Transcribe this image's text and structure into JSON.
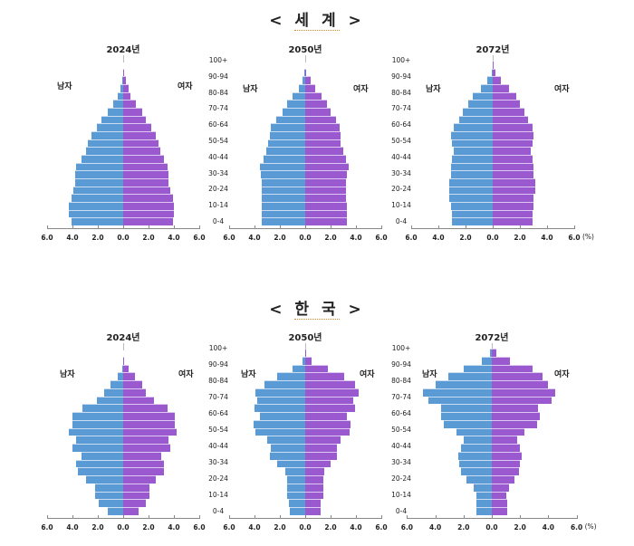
{
  "sections": [
    {
      "title": "< 세 계 >",
      "title_parts": [
        "<",
        "세 계",
        ">"
      ]
    },
    {
      "title": "< 한 국 >",
      "title_parts": [
        "<",
        "한 국",
        ">"
      ]
    }
  ],
  "labels": {
    "male": "남자",
    "female": "여자",
    "unit": "(%)"
  },
  "age_groups": [
    "0-4",
    "5-9",
    "10-14",
    "15-19",
    "20-24",
    "25-29",
    "30-34",
    "35-39",
    "40-44",
    "45-49",
    "50-54",
    "55-59",
    "60-64",
    "65-69",
    "70-74",
    "75-79",
    "80-84",
    "85-89",
    "90-94",
    "95-99",
    "100+"
  ],
  "age_tick_labels": [
    "100+",
    "90-94",
    "80-84",
    "70-74",
    "60-64",
    "50-54",
    "40-44",
    "30-34",
    "20-24",
    "10-14",
    "0-4"
  ],
  "x_ticks": [
    "6.0",
    "4.0",
    "2.0",
    "0.0",
    "2.0",
    "4.0",
    "6.0"
  ],
  "colors": {
    "male": "#5b9bd5",
    "female": "#9b59d0"
  },
  "chart_data": [
    {
      "type": "bar",
      "region": "세계",
      "title": "2024년",
      "orientation": "population-pyramid",
      "categories": [
        "0-4",
        "5-9",
        "10-14",
        "15-19",
        "20-24",
        "25-29",
        "30-34",
        "35-39",
        "40-44",
        "45-49",
        "50-54",
        "55-59",
        "60-64",
        "65-69",
        "70-74",
        "75-79",
        "80-84",
        "85-89",
        "90-94",
        "95-99",
        "100+"
      ],
      "series": [
        {
          "name": "남자",
          "values": [
            4.1,
            4.3,
            4.3,
            4.1,
            3.9,
            3.8,
            3.8,
            3.7,
            3.3,
            2.9,
            2.8,
            2.5,
            2.1,
            1.7,
            1.2,
            0.8,
            0.4,
            0.2,
            0.05,
            0.0,
            0.0
          ]
        },
        {
          "name": "여자",
          "values": [
            3.9,
            4.0,
            4.0,
            3.9,
            3.7,
            3.6,
            3.6,
            3.5,
            3.2,
            2.9,
            2.8,
            2.6,
            2.2,
            1.8,
            1.5,
            1.0,
            0.6,
            0.4,
            0.2,
            0.05,
            0.0
          ]
        }
      ],
      "xlabel": "(%)",
      "xlim": [
        -6,
        6
      ]
    },
    {
      "type": "bar",
      "region": "세계",
      "title": "2050년",
      "orientation": "population-pyramid",
      "categories": [
        "0-4",
        "5-9",
        "10-14",
        "15-19",
        "20-24",
        "25-29",
        "30-34",
        "35-39",
        "40-44",
        "45-49",
        "50-54",
        "55-59",
        "60-64",
        "65-69",
        "70-74",
        "75-79",
        "80-84",
        "85-89",
        "90-94",
        "95-99",
        "100+"
      ],
      "series": [
        {
          "name": "남자",
          "values": [
            3.4,
            3.4,
            3.4,
            3.4,
            3.4,
            3.4,
            3.5,
            3.6,
            3.3,
            3.1,
            2.9,
            2.8,
            2.7,
            2.3,
            1.8,
            1.4,
            1.0,
            0.5,
            0.2,
            0.05,
            0.0
          ]
        },
        {
          "name": "여자",
          "values": [
            3.3,
            3.3,
            3.3,
            3.2,
            3.2,
            3.2,
            3.3,
            3.4,
            3.2,
            3.0,
            2.8,
            2.8,
            2.7,
            2.4,
            2.0,
            1.7,
            1.3,
            0.8,
            0.4,
            0.1,
            0.0
          ]
        }
      ],
      "xlabel": "(%)",
      "xlim": [
        -6,
        6
      ]
    },
    {
      "type": "bar",
      "region": "세계",
      "title": "2072년",
      "orientation": "population-pyramid",
      "categories": [
        "0-4",
        "5-9",
        "10-14",
        "15-19",
        "20-24",
        "25-29",
        "30-34",
        "35-39",
        "40-44",
        "45-49",
        "50-54",
        "55-59",
        "60-64",
        "65-69",
        "70-74",
        "75-79",
        "80-84",
        "85-89",
        "90-94",
        "95-99",
        "100+"
      ],
      "series": [
        {
          "name": "남자",
          "values": [
            3.0,
            3.0,
            3.1,
            3.2,
            3.2,
            3.2,
            3.1,
            3.1,
            3.0,
            2.9,
            3.0,
            3.1,
            2.9,
            2.5,
            2.2,
            1.8,
            1.5,
            0.9,
            0.4,
            0.1,
            0.0
          ]
        },
        {
          "name": "여자",
          "values": [
            2.9,
            2.9,
            3.0,
            3.0,
            3.1,
            3.1,
            3.0,
            3.0,
            2.9,
            2.8,
            2.9,
            3.0,
            2.9,
            2.6,
            2.3,
            2.0,
            1.7,
            1.2,
            0.6,
            0.2,
            0.05
          ]
        }
      ],
      "xlabel": "(%)",
      "xlim": [
        -6,
        6
      ]
    },
    {
      "type": "bar",
      "region": "한국",
      "title": "2024년",
      "orientation": "population-pyramid",
      "categories": [
        "0-4",
        "5-9",
        "10-14",
        "15-19",
        "20-24",
        "25-29",
        "30-34",
        "35-39",
        "40-44",
        "45-49",
        "50-54",
        "55-59",
        "60-64",
        "65-69",
        "70-74",
        "75-79",
        "80-84",
        "85-89",
        "90-94",
        "95-99",
        "100+"
      ],
      "series": [
        {
          "name": "남자",
          "values": [
            1.2,
            1.9,
            2.2,
            2.2,
            2.9,
            3.6,
            3.7,
            3.3,
            4.0,
            3.7,
            4.3,
            4.0,
            4.0,
            3.2,
            2.1,
            1.5,
            1.0,
            0.4,
            0.1,
            0.02,
            0.0
          ]
        },
        {
          "name": "여자",
          "values": [
            1.2,
            1.8,
            2.1,
            2.1,
            2.6,
            3.2,
            3.2,
            3.0,
            3.7,
            3.6,
            4.2,
            4.1,
            4.1,
            3.5,
            2.4,
            1.8,
            1.5,
            0.9,
            0.4,
            0.1,
            0.02
          ]
        }
      ],
      "xlabel": "(%)",
      "xlim": [
        -6,
        6
      ]
    },
    {
      "type": "bar",
      "region": "한국",
      "title": "2050년",
      "orientation": "population-pyramid",
      "categories": [
        "0-4",
        "5-9",
        "10-14",
        "15-19",
        "20-24",
        "25-29",
        "30-34",
        "35-39",
        "40-44",
        "45-49",
        "50-54",
        "55-59",
        "60-64",
        "65-69",
        "70-74",
        "75-79",
        "80-84",
        "85-89",
        "90-94",
        "95-99",
        "100+"
      ],
      "series": [
        {
          "name": "남자",
          "values": [
            1.2,
            1.3,
            1.4,
            1.4,
            1.4,
            1.6,
            2.2,
            2.8,
            2.7,
            3.0,
            3.9,
            4.1,
            3.6,
            4.0,
            3.8,
            3.9,
            3.2,
            2.2,
            1.0,
            0.2,
            0.02
          ]
        },
        {
          "name": "여자",
          "values": [
            1.2,
            1.2,
            1.4,
            1.4,
            1.4,
            1.5,
            2.0,
            2.5,
            2.5,
            2.8,
            3.5,
            3.6,
            3.3,
            3.9,
            3.8,
            4.2,
            3.9,
            3.1,
            1.8,
            0.5,
            0.05
          ]
        }
      ],
      "xlabel": "(%)",
      "xlim": [
        -6,
        6
      ]
    },
    {
      "type": "bar",
      "region": "한국",
      "title": "2072년",
      "orientation": "population-pyramid",
      "categories": [
        "0-4",
        "5-9",
        "10-14",
        "15-19",
        "20-24",
        "25-29",
        "30-34",
        "35-39",
        "40-44",
        "45-49",
        "50-54",
        "55-59",
        "60-64",
        "65-69",
        "70-74",
        "75-79",
        "80-84",
        "85-89",
        "90-94",
        "95-99",
        "100+"
      ],
      "series": [
        {
          "name": "남자",
          "values": [
            1.1,
            1.1,
            1.1,
            1.3,
            1.8,
            2.2,
            2.3,
            2.4,
            2.2,
            2.0,
            2.5,
            3.4,
            3.6,
            3.6,
            4.5,
            4.9,
            4.0,
            3.1,
            2.0,
            0.7,
            0.15
          ]
        },
        {
          "name": "여자",
          "values": [
            1.1,
            1.1,
            1.0,
            1.2,
            1.6,
            1.9,
            2.0,
            2.1,
            2.0,
            1.8,
            2.3,
            3.2,
            3.4,
            3.3,
            4.2,
            4.5,
            4.0,
            3.6,
            2.9,
            1.3,
            0.35
          ]
        }
      ],
      "xlabel": "(%)",
      "xlim": [
        -6,
        6
      ]
    }
  ]
}
